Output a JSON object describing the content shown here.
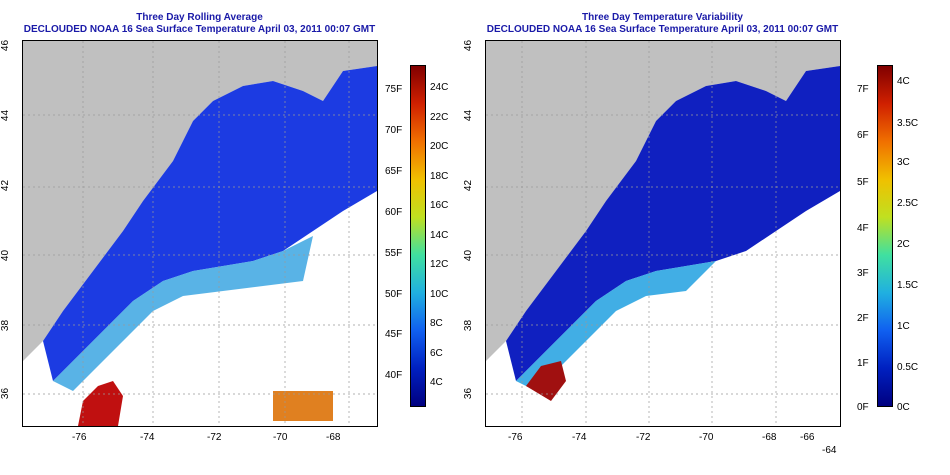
{
  "left_panel": {
    "title1": "Three Day Rolling Average",
    "title2": "DECLOUDED NOAA 16 Sea Surface Temperature April 03, 2011 00:07 GMT",
    "colorbar": {
      "celsius": [
        "24C",
        "22C",
        "20C",
        "18C",
        "16C",
        "14C",
        "12C",
        "10C",
        "8C",
        "6C",
        "4C"
      ],
      "fahrenheit": [
        "75F",
        "70F",
        "65F",
        "60F",
        "55F",
        "50F",
        "45F",
        "40F"
      ]
    }
  },
  "right_panel": {
    "title1": "Three Day Temperature Variability",
    "title2": "DECLOUDED NOAA 16 Sea Surface Temperature April 03, 2011 00:07 GMT",
    "colorbar": {
      "celsius": [
        "4C",
        "3.5C",
        "3C",
        "2.5C",
        "2C",
        "1.5C",
        "1C",
        "0.5C",
        "0C"
      ],
      "fahrenheit": [
        "7F",
        "6F",
        "5F",
        "4F",
        "3F",
        "2F",
        "1F",
        "0F"
      ]
    }
  },
  "axes": {
    "lon_ticks": [
      "-76",
      "-74",
      "-72",
      "-70",
      "-68",
      "-66",
      "-64"
    ],
    "lat_ticks": [
      "46",
      "44",
      "42",
      "40",
      "38",
      "36"
    ]
  },
  "colors": {
    "land": "#c0c0c0",
    "title": "#1a1aa8",
    "cold": "#1030e0",
    "warm": "#c01010"
  }
}
